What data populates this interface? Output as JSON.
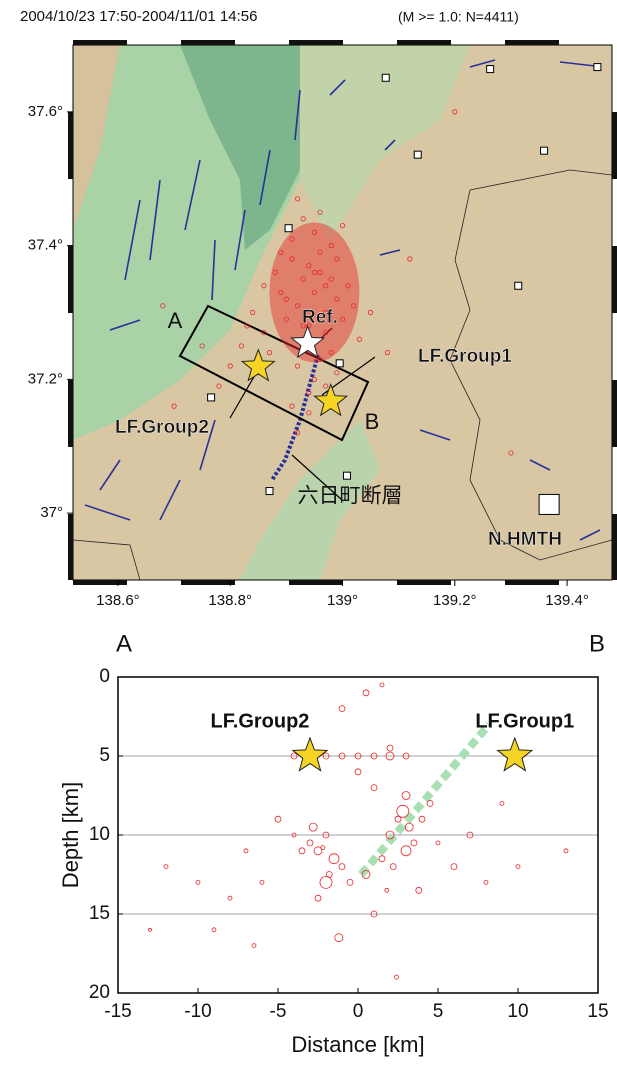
{
  "chart_data": [
    {
      "type": "map",
      "title": "2004/10/23 17:50-2004/11/01 14:56",
      "subtitle": "(M >= 1.0: N=4411)",
      "xlim": [
        138.52,
        139.48
      ],
      "ylim": [
        36.9,
        37.7
      ],
      "xticks": [
        {
          "value": 138.6,
          "label": "138.6°"
        },
        {
          "value": 138.8,
          "label": "138.8°"
        },
        {
          "value": 139,
          "label": "139°"
        },
        {
          "value": 139.2,
          "label": "139.2°"
        },
        {
          "value": 139.4,
          "label": "139.4°"
        }
      ],
      "yticks": [
        {
          "value": 37,
          "label": "37°"
        },
        {
          "value": 37.2,
          "label": "37.2°"
        },
        {
          "value": 37.4,
          "label": "37.4°"
        },
        {
          "value": 37.6,
          "label": "37.6°"
        }
      ],
      "events": {
        "color": "#e8262b",
        "x": [
          138.95,
          138.93,
          138.97,
          138.91,
          138.99,
          138.94,
          138.96,
          138.92,
          138.98,
          139.01,
          138.9,
          138.95,
          138.93,
          138.97,
          138.89,
          138.96,
          138.94,
          139.0,
          138.92,
          138.98,
          138.88,
          138.95,
          138.91,
          138.97,
          138.86,
          138.99,
          138.93,
          139.02,
          138.87,
          138.96,
          138.84,
          138.94,
          138.9,
          139.03,
          138.85,
          138.97,
          138.92,
          138.95,
          138.82,
          139.0,
          138.89,
          138.93,
          138.96,
          138.8,
          138.98,
          138.91,
          139.05,
          138.86,
          138.94,
          138.99,
          138.78,
          138.92,
          139.08,
          138.83,
          138.75,
          139.12,
          138.7,
          139.2,
          138.68,
          139.3
        ],
        "y": [
          37.33,
          37.35,
          37.3,
          37.38,
          37.32,
          37.28,
          37.36,
          37.31,
          37.4,
          37.34,
          37.29,
          37.42,
          37.25,
          37.27,
          37.33,
          37.39,
          37.37,
          37.29,
          37.22,
          37.24,
          37.36,
          37.2,
          37.41,
          37.34,
          37.27,
          37.38,
          37.44,
          37.31,
          37.24,
          37.45,
          37.3,
          37.18,
          37.32,
          37.26,
          37.21,
          37.19,
          37.47,
          37.36,
          37.25,
          37.43,
          37.39,
          37.28,
          37.23,
          37.22,
          37.35,
          37.16,
          37.3,
          37.34,
          37.15,
          37.21,
          37.19,
          37.12,
          37.24,
          37.28,
          37.25,
          37.38,
          37.16,
          37.6,
          37.31,
          37.09
        ]
      },
      "stations": {
        "x": [
          139.077,
          139.263,
          139.454,
          139.134,
          139.359,
          138.904,
          139.313,
          138.995,
          138.766,
          139.008,
          138.87
        ],
        "y": [
          37.651,
          37.664,
          37.667,
          37.536,
          37.542,
          37.426,
          37.34,
          37.224,
          37.173,
          37.056,
          37.033
        ]
      },
      "markers": [
        {
          "label": "Ref.",
          "shape": "star",
          "color": "#ffffff",
          "x": 138.938,
          "y": 37.254
        },
        {
          "label": "LF.Group1",
          "shape": "star",
          "color": "#f5d424",
          "x": 138.979,
          "y": 37.167
        },
        {
          "label": "LF.Group2",
          "shape": "star",
          "color": "#f5d424",
          "x": 138.85,
          "y": 37.219
        },
        {
          "label": "N.HMTH",
          "shape": "square",
          "color": "#ffffff",
          "x": 139.368,
          "y": 37.013
        }
      ],
      "annotations": [
        "A",
        "B",
        "六日町断層"
      ]
    },
    {
      "type": "scatter",
      "xlabel": "Distance [km]",
      "ylabel": "Depth [km]",
      "corner_labels": [
        "A",
        "B"
      ],
      "xlim": [
        -15,
        15
      ],
      "ylim": [
        20,
        0
      ],
      "xticks": [
        -15,
        -10,
        -5,
        0,
        5,
        10,
        15
      ],
      "yticks": [
        0,
        5,
        10,
        15,
        20
      ],
      "grid": true,
      "color": "#e8262b",
      "x": [
        -3,
        -2.5,
        -2,
        -1.5,
        -1,
        -2.2,
        -2.8,
        -1.8,
        -3.5,
        -2,
        2,
        2.5,
        3,
        3.5,
        2.2,
        1.8,
        2.8,
        3.2,
        4,
        1.5,
        0.5,
        -0.5,
        1,
        -4,
        -5,
        -6,
        -7,
        4.5,
        5,
        6,
        -8,
        -9,
        -10,
        -12,
        -13,
        7,
        8,
        9,
        10,
        13,
        -2,
        -1,
        0,
        1,
        2,
        3,
        -3,
        -4,
        2,
        3,
        -1,
        0.5,
        1.5,
        -2.5,
        3.8,
        -6.5,
        -1.2,
        0,
        2.4,
        1
      ],
      "y": [
        10.5,
        11,
        10,
        11.5,
        12,
        10.8,
        9.5,
        12.5,
        11,
        13,
        10,
        9,
        11,
        10.5,
        12,
        13.5,
        8.5,
        9.5,
        9,
        11.5,
        12.5,
        13,
        7,
        10,
        9,
        13,
        11,
        8,
        10.5,
        12,
        14,
        16,
        13,
        12,
        16,
        10,
        13,
        8,
        12,
        11,
        5,
        5,
        5,
        5,
        5,
        5,
        5,
        5,
        4.5,
        7.5,
        2,
        1,
        0.5,
        14,
        13.5,
        17,
        16.5,
        6,
        19,
        15
      ],
      "sizes": [
        3,
        4,
        3,
        5,
        3,
        2,
        4,
        3,
        3,
        6,
        4,
        3,
        5,
        3,
        3,
        2,
        6,
        4,
        3,
        3,
        4,
        3,
        3,
        2,
        3,
        2,
        2,
        3,
        2,
        3,
        2,
        2,
        2,
        2,
        1.5,
        3,
        2,
        2,
        2,
        2,
        3,
        3,
        3,
        3,
        4,
        3,
        3,
        3,
        3,
        4,
        3,
        3,
        2,
        3,
        3,
        2,
        4,
        3,
        2,
        3
      ],
      "trace": {
        "color": "#a8e0b4",
        "x": [
          0.2,
          8.2
        ],
        "y": [
          12.5,
          3
        ]
      },
      "markers": [
        {
          "label": "LF.Group2",
          "color": "#f5d424",
          "x": -3,
          "y": 5
        },
        {
          "label": "LF.Group1",
          "color": "#f5d424",
          "x": 9.8,
          "y": 5
        }
      ]
    }
  ]
}
